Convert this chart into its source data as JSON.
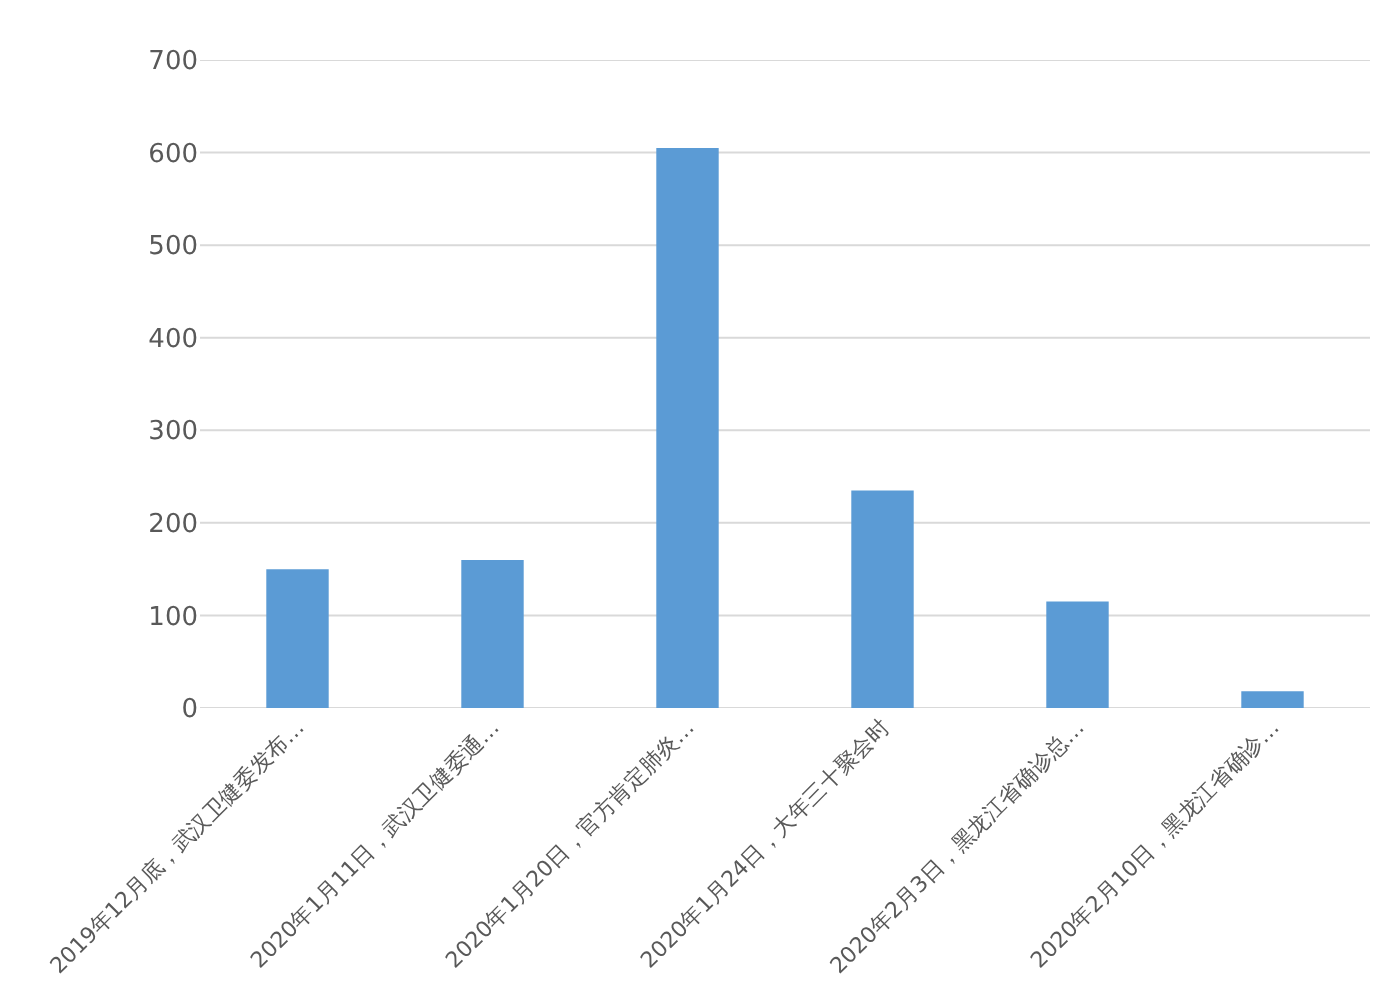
{
  "chart_data": {
    "type": "bar",
    "categories": [
      "2019年12月底，武汉卫健委发布…",
      "2020年1月11日，武汉卫健委通…",
      "2020年1月20日，官方肯定肺炎…",
      "2020年1月24日，大年三十聚会时",
      "2020年2月3日，黑龙江省确诊总…",
      "2020年2月10日，黑龙江省确诊…"
    ],
    "values": [
      150,
      160,
      605,
      235,
      115,
      18
    ],
    "color": "#5b9bd5",
    "ylim": [
      0,
      700
    ],
    "yticks": [
      0,
      100,
      200,
      300,
      400,
      500,
      600,
      700
    ],
    "grid": "y"
  }
}
